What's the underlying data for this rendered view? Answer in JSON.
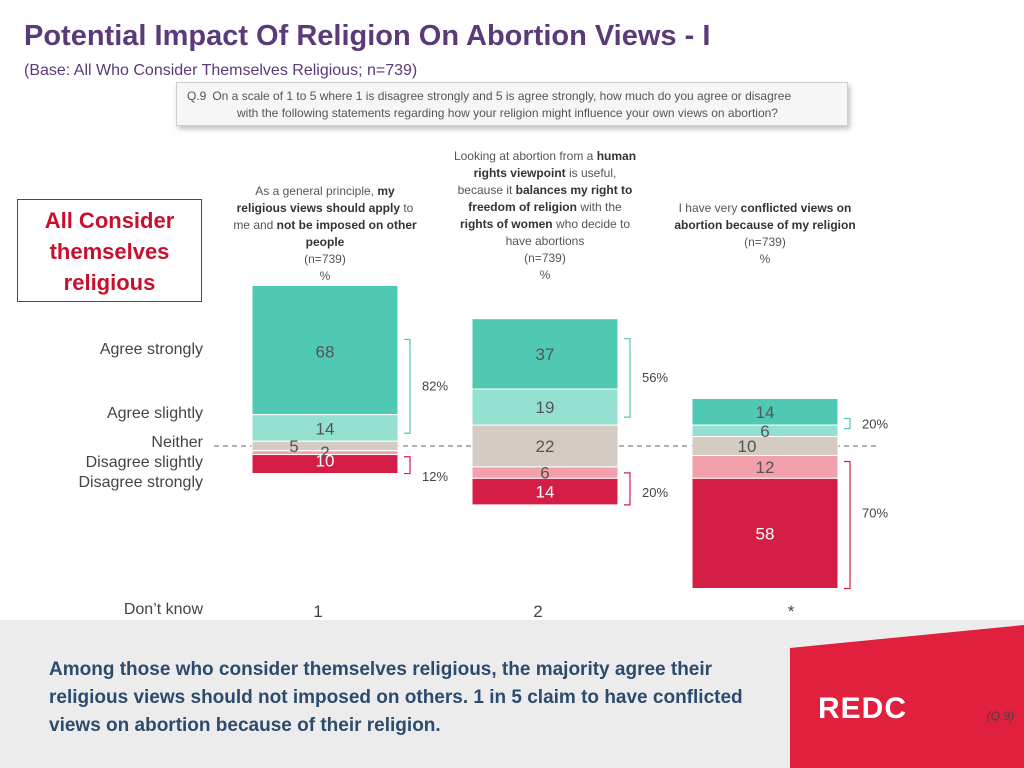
{
  "page": {
    "title": "Potential Impact Of Religion On Abortion Views - I",
    "base": "(Base: All Who Consider Themselves Religious; n=739)",
    "question_number": "Q.9",
    "question_line1": "On a scale of 1 to 5 where 1 is disagree strongly and 5 is agree strongly, how much do you agree or disagree",
    "question_line2": "with the following statements regarding how your religion might influence your own views on abortion?",
    "segment_label": "All Consider themselves religious",
    "footer_text": "Among those who consider themselves religious, the majority agree their religious views should not imposed on others. 1 in 5 claim to have conflicted views on abortion because of their religion.",
    "question_ref": "(Q.9)",
    "logo_text": "REDC"
  },
  "colors": {
    "title": "#5b3a79",
    "agree_strongly": "#4fc9b3",
    "agree_slightly": "#93e0d1",
    "neither": "#d4cbc2",
    "disagree_slightly": "#f3a0ad",
    "disagree_strongly": "#d41e45",
    "footer_text": "#2d4b6c",
    "logo_red": "#e0203c"
  },
  "chart_data": {
    "type": "stacked-bar",
    "row_labels": [
      "Agree strongly",
      "Agree slightly",
      "Neither",
      "Disagree slightly",
      "Disagree strongly",
      "Don’t know"
    ],
    "columns": [
      {
        "header_parts": [
          [
            "As a general principle, ",
            false
          ],
          [
            "my religious views should apply",
            true
          ],
          [
            " to me and ",
            false
          ],
          [
            "not be imposed on other people",
            true
          ]
        ],
        "n": "(n=739)",
        "unit": "%",
        "values": {
          "agree_strongly": 68,
          "agree_slightly": 14,
          "neither": 5,
          "disagree_slightly": 2,
          "disagree_strongly": 10
        },
        "value_labels": {
          "agree_strongly": "68",
          "agree_slightly": "14",
          "neither": "5",
          "disagree_slightly": "2",
          "disagree_strongly": "10"
        },
        "net_agree": "82%",
        "net_disagree": "12%",
        "dont_know": "1"
      },
      {
        "header_parts": [
          [
            "Looking at abortion from a ",
            false
          ],
          [
            "human rights viewpoint",
            true
          ],
          [
            " is useful, because it ",
            false
          ],
          [
            "balances my right to freedom of religion",
            true
          ],
          [
            " with the ",
            false
          ],
          [
            "rights of women",
            true
          ],
          [
            " who decide to have abortions",
            false
          ]
        ],
        "n": "(n=739)",
        "unit": "%",
        "values": {
          "agree_strongly": 37,
          "agree_slightly": 19,
          "neither": 22,
          "disagree_slightly": 6,
          "disagree_strongly": 14
        },
        "value_labels": {
          "agree_strongly": "37",
          "agree_slightly": "19",
          "neither": "22",
          "disagree_slightly": "6",
          "disagree_strongly": "14"
        },
        "net_agree": "56%",
        "net_disagree": "20%",
        "dont_know": "2"
      },
      {
        "header_parts": [
          [
            "I have very ",
            false
          ],
          [
            "conflicted views on abortion because of my religion",
            true
          ]
        ],
        "n": "(n=739)",
        "unit": "%",
        "values": {
          "agree_strongly": 14,
          "agree_slightly": 6,
          "neither": 10,
          "disagree_slightly": 12,
          "disagree_strongly": 58
        },
        "value_labels": {
          "agree_strongly": "14",
          "agree_slightly": "6",
          "neither": "10",
          "disagree_slightly": "12",
          "disagree_strongly": "58"
        },
        "net_agree": "20%",
        "net_disagree": "70%",
        "dont_know": "*"
      }
    ]
  }
}
